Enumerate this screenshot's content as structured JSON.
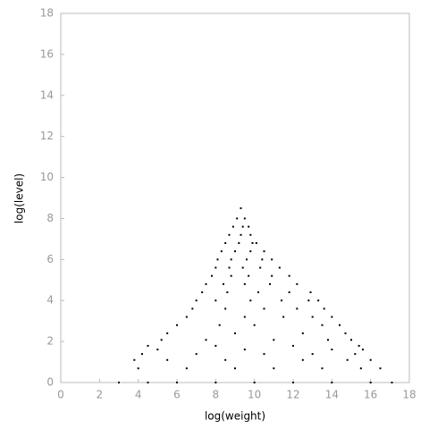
{
  "chart_data": {
    "type": "scatter",
    "x_label": "log(weight)",
    "y_label": "log(level)",
    "color": "#000000",
    "xlim": [
      0,
      18
    ],
    "ylim": [
      0,
      18
    ],
    "xticks": [
      0,
      2,
      4,
      6,
      8,
      10,
      12,
      14,
      16,
      18
    ],
    "yticks": [
      0,
      2,
      4,
      6,
      8,
      10,
      12,
      14,
      16,
      18
    ],
    "x": [
      3.0,
      4.5,
      6.0,
      8.0,
      10.0,
      12.0,
      14.0,
      16.0,
      17.1,
      4.0,
      6.5,
      9.0,
      11.0,
      13.5,
      15.5,
      16.5,
      3.8,
      5.5,
      8.5,
      12.5,
      14.8,
      16.0,
      4.2,
      7.0,
      10.5,
      13.0,
      15.2,
      5.0,
      9.5,
      14.0,
      15.6,
      4.5,
      8.0,
      12.0,
      15.4,
      5.2,
      7.5,
      11.0,
      13.8,
      15.0,
      5.5,
      9.0,
      12.5,
      14.7,
      6.0,
      8.2,
      10.0,
      13.5,
      14.4,
      6.5,
      9.5,
      11.5,
      13.0,
      14.0,
      6.8,
      8.5,
      10.5,
      12.2,
      13.6,
      7.0,
      8.0,
      9.8,
      11.4,
      12.8,
      13.3,
      7.3,
      8.6,
      10.2,
      11.8,
      12.9,
      7.5,
      8.4,
      9.5,
      10.8,
      12.2,
      7.8,
      8.8,
      9.7,
      10.9,
      11.8,
      8.0,
      8.7,
      9.4,
      10.3,
      11.3,
      8.1,
      8.8,
      9.6,
      10.4,
      10.9,
      8.3,
      9.0,
      9.8,
      10.5,
      8.5,
      9.2,
      9.9,
      10.1,
      8.7,
      9.3,
      9.8,
      8.9,
      9.4,
      9.7,
      9.1,
      9.5,
      9.3
    ],
    "values": [
      0,
      0,
      0,
      0,
      0,
      0,
      0,
      0,
      0,
      0.69,
      0.69,
      0.69,
      0.69,
      0.69,
      0.69,
      0.69,
      1.1,
      1.1,
      1.1,
      1.1,
      1.1,
      1.1,
      1.39,
      1.39,
      1.39,
      1.39,
      1.39,
      1.61,
      1.61,
      1.61,
      1.61,
      1.79,
      1.79,
      1.79,
      1.79,
      2.08,
      2.08,
      2.08,
      2.08,
      2.08,
      2.4,
      2.4,
      2.4,
      2.4,
      2.8,
      2.8,
      2.8,
      2.8,
      2.8,
      3.2,
      3.2,
      3.2,
      3.2,
      3.2,
      3.6,
      3.6,
      3.6,
      3.6,
      3.6,
      4.0,
      4.0,
      4.0,
      4.0,
      4.0,
      4.0,
      4.4,
      4.4,
      4.4,
      4.4,
      4.4,
      4.8,
      4.8,
      4.8,
      4.8,
      4.8,
      5.2,
      5.2,
      5.2,
      5.2,
      5.2,
      5.6,
      5.6,
      5.6,
      5.6,
      5.6,
      6.0,
      6.0,
      6.0,
      6.0,
      6.0,
      6.4,
      6.4,
      6.4,
      6.4,
      6.8,
      6.8,
      6.8,
      6.8,
      7.2,
      7.2,
      7.2,
      7.6,
      7.6,
      7.6,
      8.0,
      8.0,
      8.5
    ]
  }
}
